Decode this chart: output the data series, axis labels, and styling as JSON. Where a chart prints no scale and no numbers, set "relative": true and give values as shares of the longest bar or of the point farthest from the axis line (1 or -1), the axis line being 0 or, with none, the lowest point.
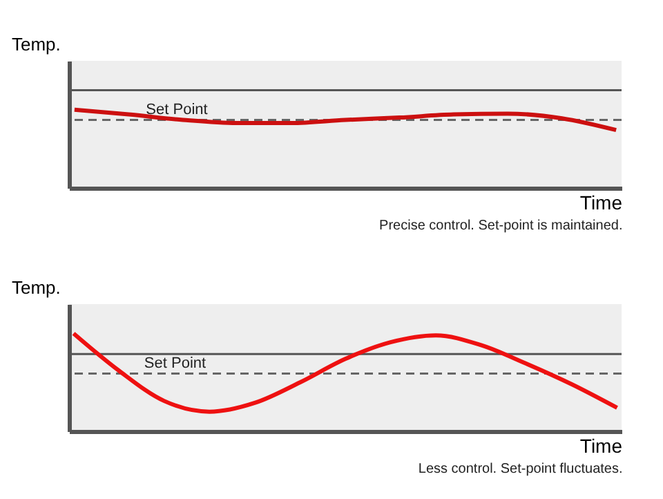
{
  "chart_data": [
    {
      "type": "line",
      "xlabel": "Time",
      "ylabel": "Temp.",
      "relative": true,
      "tick_labels": false,
      "categories": [
        null,
        null,
        null,
        null,
        null,
        null,
        null,
        null,
        null,
        null,
        null
      ],
      "series": [
        {
          "color": "#cc1010",
          "values": [
            1.0,
            0.94,
            0.87,
            0.83,
            0.83,
            0.87,
            0.9,
            0.94,
            0.95,
            0.89,
            0.74
          ]
        }
      ],
      "ref_lines": [
        {
          "axis": "y",
          "value": 1.25,
          "color": "#555555",
          "line_style": "solid"
        },
        {
          "axis": "y",
          "value": 0.87,
          "label": "Set Point",
          "color": "#666666",
          "line_style": "dashed"
        }
      ],
      "annotations": [
        "Precise control. Set-point is maintained."
      ]
    },
    {
      "type": "line",
      "xlabel": "Time",
      "ylabel": "Temp.",
      "relative": true,
      "tick_labels": false,
      "categories": [
        null,
        null,
        null,
        null,
        null,
        null,
        null,
        null,
        null,
        null,
        null,
        null,
        null
      ],
      "series": [
        {
          "color": "#ee1111",
          "values": [
            1.0,
            0.62,
            0.31,
            0.2,
            0.29,
            0.5,
            0.74,
            0.91,
            0.98,
            0.88,
            0.69,
            0.48,
            0.24
          ]
        }
      ],
      "ref_lines": [
        {
          "axis": "y",
          "value": 0.79,
          "color": "#555555",
          "line_style": "solid"
        },
        {
          "axis": "y",
          "value": 0.59,
          "label": "Set Point",
          "color": "#666666",
          "line_style": "dashed"
        }
      ],
      "annotations": [
        "Less control. Set-point fluctuates."
      ]
    }
  ]
}
